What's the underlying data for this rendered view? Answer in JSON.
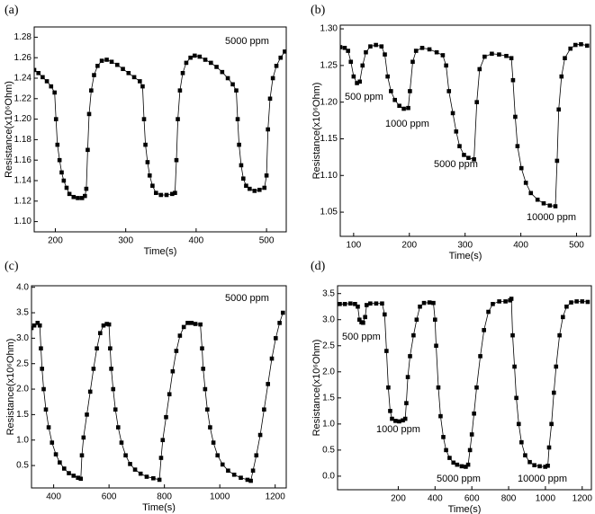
{
  "chart_data": [
    {
      "type": "line",
      "title": "(a)",
      "xlabel": "Time(s)",
      "ylabel": "Resistance(x10⁶Ohm)",
      "annotations": [
        "5000 ppm"
      ],
      "color": "#000000",
      "xlim": [
        170,
        528
      ],
      "xticks": [
        200,
        300,
        400,
        500
      ],
      "ylim": [
        1.09,
        1.29
      ],
      "yticks": [
        {
          "value": 1.1,
          "label": "1.10"
        },
        1.12,
        1.14,
        1.16,
        1.18,
        {
          "value": 1.2,
          "label": "1.20"
        },
        1.22,
        1.24,
        1.26,
        1.28
      ],
      "x": [
        170,
        176,
        182,
        188,
        194,
        199,
        201,
        203,
        206,
        209,
        212,
        216,
        220,
        226,
        232,
        238,
        242,
        244,
        246,
        248,
        251,
        255,
        260,
        266,
        273,
        280,
        288,
        296,
        304,
        312,
        320,
        324,
        326,
        328,
        331,
        334,
        338,
        343,
        350,
        358,
        366,
        370,
        372,
        374,
        377,
        381,
        386,
        392,
        398,
        405,
        413,
        421,
        429,
        437,
        445,
        452,
        457,
        459,
        461,
        464,
        467,
        471,
        476,
        483,
        490,
        497,
        500,
        502,
        505,
        509,
        514,
        520,
        526
      ],
      "values": [
        1.248,
        1.245,
        1.241,
        1.237,
        1.232,
        1.226,
        1.2,
        1.175,
        1.16,
        1.148,
        1.14,
        1.133,
        1.127,
        1.124,
        1.123,
        1.123,
        1.125,
        1.132,
        1.17,
        1.205,
        1.228,
        1.243,
        1.252,
        1.257,
        1.258,
        1.256,
        1.253,
        1.249,
        1.245,
        1.241,
        1.237,
        1.232,
        1.2,
        1.175,
        1.158,
        1.145,
        1.135,
        1.128,
        1.126,
        1.126,
        1.127,
        1.128,
        1.16,
        1.2,
        1.228,
        1.245,
        1.255,
        1.26,
        1.262,
        1.261,
        1.258,
        1.255,
        1.251,
        1.246,
        1.24,
        1.234,
        1.228,
        1.2,
        1.175,
        1.155,
        1.142,
        1.135,
        1.132,
        1.13,
        1.131,
        1.133,
        1.145,
        1.19,
        1.22,
        1.24,
        1.252,
        1.26,
        1.266
      ]
    },
    {
      "type": "line",
      "title": "(b)",
      "xlabel": "Time(s)",
      "ylabel": "Resistance(x10⁶Ohm)",
      "annotations": [
        "500 ppm",
        "1000 ppm",
        "5000 ppm",
        "10000 ppm"
      ],
      "color": "#000000",
      "xlim": [
        76,
        525
      ],
      "xticks": [
        100,
        200,
        300,
        400,
        500
      ],
      "ylim": [
        1.017,
        1.305
      ],
      "yticks": [
        1.05,
        {
          "value": 1.1,
          "label": "1.10"
        },
        1.15,
        {
          "value": 1.2,
          "label": "1.20"
        },
        1.25,
        {
          "value": 1.3,
          "label": "1.30"
        }
      ],
      "x": [
        76,
        84,
        90,
        95,
        100,
        106,
        111,
        116,
        122,
        130,
        140,
        150,
        156,
        161,
        167,
        174,
        182,
        190,
        198,
        201,
        206,
        212,
        223,
        236,
        249,
        260,
        266,
        271,
        278,
        284,
        290,
        298,
        306,
        316,
        321,
        326,
        335,
        348,
        361,
        374,
        383,
        386,
        390,
        394,
        401,
        409,
        418,
        430,
        441,
        452,
        462,
        465,
        468,
        473,
        479,
        489,
        498,
        508,
        519
      ],
      "values": [
        1.275,
        1.274,
        1.27,
        1.255,
        1.235,
        1.226,
        1.228,
        1.25,
        1.268,
        1.276,
        1.278,
        1.276,
        1.265,
        1.235,
        1.215,
        1.203,
        1.195,
        1.191,
        1.192,
        1.215,
        1.255,
        1.27,
        1.274,
        1.272,
        1.268,
        1.264,
        1.25,
        1.215,
        1.185,
        1.16,
        1.14,
        1.128,
        1.124,
        1.122,
        1.2,
        1.245,
        1.262,
        1.266,
        1.265,
        1.263,
        1.26,
        1.23,
        1.18,
        1.14,
        1.11,
        1.09,
        1.076,
        1.067,
        1.062,
        1.059,
        1.058,
        1.12,
        1.19,
        1.235,
        1.26,
        1.273,
        1.278,
        1.279,
        1.277
      ]
    },
    {
      "type": "line",
      "title": "(c)",
      "xlabel": "Time(s)",
      "ylabel": "Resistance(x10⁶Ohm)",
      "annotations": [
        "5000 ppm"
      ],
      "color": "#000000",
      "xlim": [
        320,
        1240
      ],
      "xticks": [
        400,
        600,
        800,
        1000,
        1200
      ],
      "ylim": [
        0.06,
        4.03
      ],
      "yticks": [
        0.5,
        {
          "value": 1,
          "label": "1.0"
        },
        1.5,
        {
          "value": 2,
          "label": "2.0"
        },
        2.5,
        {
          "value": 3,
          "label": "3.0"
        },
        3.5,
        {
          "value": 4,
          "label": "4.0"
        }
      ],
      "x": [
        320,
        330,
        342,
        350,
        354,
        358,
        364,
        372,
        382,
        394,
        408,
        422,
        438,
        455,
        472,
        488,
        498,
        502,
        508,
        520,
        532,
        544,
        556,
        568,
        580,
        592,
        600,
        604,
        608,
        615,
        623,
        633,
        645,
        660,
        676,
        694,
        714,
        736,
        760,
        782,
        788,
        794,
        806,
        818,
        830,
        843,
        856,
        870,
        884,
        898,
        912,
        930,
        936,
        940,
        947,
        955,
        965,
        977,
        992,
        1010,
        1030,
        1052,
        1076,
        1100,
        1112,
        1120,
        1132,
        1146,
        1160,
        1174,
        1188,
        1202,
        1216,
        1228
      ],
      "values": [
        3.2,
        3.25,
        3.3,
        3.25,
        2.8,
        2.4,
        2.0,
        1.6,
        1.25,
        0.95,
        0.72,
        0.56,
        0.44,
        0.35,
        0.3,
        0.26,
        0.24,
        0.7,
        1.05,
        1.5,
        1.95,
        2.4,
        2.8,
        3.1,
        3.25,
        3.28,
        3.27,
        2.8,
        2.4,
        2.0,
        1.6,
        1.25,
        0.95,
        0.7,
        0.53,
        0.42,
        0.34,
        0.28,
        0.25,
        0.22,
        0.65,
        1.0,
        1.45,
        1.9,
        2.35,
        2.75,
        3.05,
        3.22,
        3.3,
        3.3,
        3.28,
        3.27,
        2.8,
        2.4,
        2.0,
        1.6,
        1.25,
        0.95,
        0.7,
        0.52,
        0.4,
        0.32,
        0.26,
        0.22,
        0.2,
        0.4,
        0.7,
        1.1,
        1.6,
        2.1,
        2.6,
        3.0,
        3.3,
        3.5
      ]
    },
    {
      "type": "line",
      "title": "(d)",
      "xlabel": "Time(s)",
      "ylabel": "Resistance(x10⁶Ohm)",
      "annotations": [
        "500 ppm",
        "1000 ppm",
        "5000 ppm",
        "10000 ppm"
      ],
      "color": "#000000",
      "xlim": [
        -130,
        1250
      ],
      "xticks": [
        200,
        400,
        600,
        800,
        1000,
        1200
      ],
      "ylim": [
        -0.26,
        3.65
      ],
      "yticks": [
        {
          "value": 0,
          "label": "0.0"
        },
        0.5,
        {
          "value": 1,
          "label": "1.0"
        },
        1.5,
        {
          "value": 2,
          "label": "2.0"
        },
        2.5,
        {
          "value": 3,
          "label": "3.0"
        },
        3.5
      ],
      "x": [
        -118,
        -90,
        -60,
        -35,
        -20,
        -11,
        0,
        9,
        20,
        28,
        48,
        80,
        112,
        126,
        136,
        146,
        156,
        166,
        185,
        205,
        225,
        238,
        244,
        252,
        264,
        283,
        300,
        318,
        340,
        370,
        391,
        400,
        406,
        418,
        430,
        445,
        460,
        479,
        500,
        520,
        545,
        567,
        580,
        590,
        600,
        612,
        626,
        646,
        666,
        690,
        714,
        749,
        783,
        808,
        815,
        822,
        832,
        842,
        855,
        870,
        890,
        915,
        940,
        969,
        999,
        1013,
        1020,
        1033,
        1046,
        1058,
        1077,
        1095,
        1115,
        1140,
        1170,
        1200,
        1230
      ],
      "values": [
        3.3,
        3.3,
        3.31,
        3.3,
        3.25,
        3.0,
        2.95,
        2.94,
        3.05,
        3.28,
        3.31,
        3.31,
        3.31,
        3.1,
        2.4,
        1.7,
        1.25,
        1.1,
        1.06,
        1.05,
        1.07,
        1.1,
        1.4,
        1.9,
        2.3,
        2.7,
        3.0,
        3.25,
        3.32,
        3.33,
        3.32,
        3.0,
        2.5,
        1.7,
        1.15,
        0.75,
        0.5,
        0.35,
        0.26,
        0.22,
        0.19,
        0.18,
        0.22,
        0.5,
        0.8,
        1.2,
        1.7,
        2.3,
        2.8,
        3.15,
        3.3,
        3.35,
        3.35,
        3.37,
        3.4,
        2.7,
        2.1,
        1.5,
        1.0,
        0.65,
        0.4,
        0.27,
        0.21,
        0.19,
        0.18,
        0.2,
        0.55,
        1.0,
        1.6,
        2.1,
        2.7,
        3.05,
        3.25,
        3.33,
        3.35,
        3.35,
        3.34
      ]
    }
  ]
}
